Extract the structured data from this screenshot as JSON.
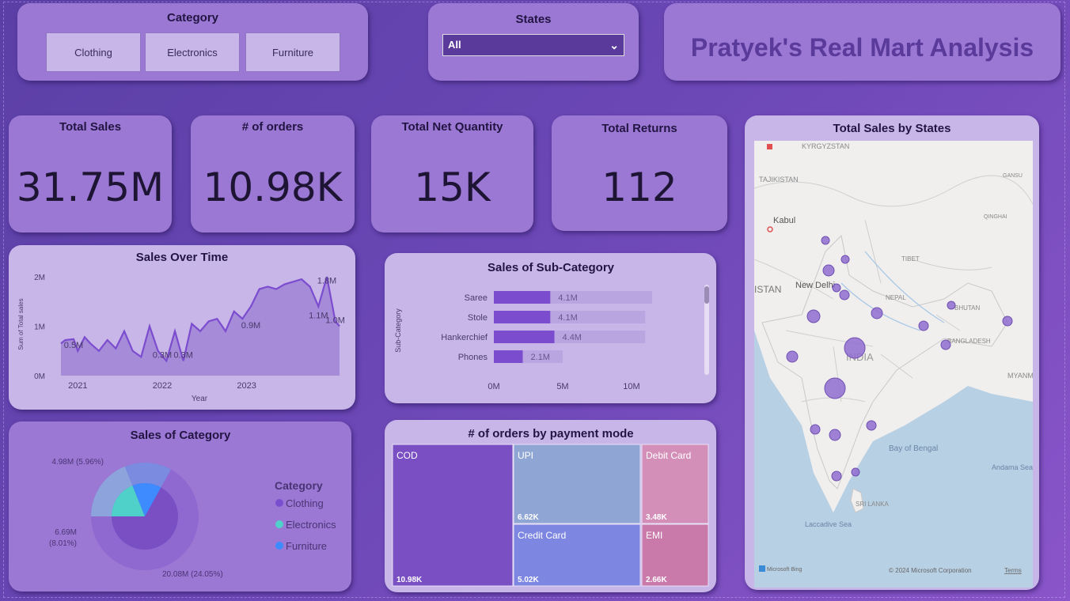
{
  "category_slicer": {
    "title": "Category",
    "options": [
      "Clothing",
      "Electronics",
      "Furniture"
    ]
  },
  "states_slicer": {
    "title": "States",
    "selected": "All"
  },
  "report_title": "Pratyek's Real Mart Analysis",
  "kpis": [
    {
      "label": "Total Sales",
      "value": "31.75M"
    },
    {
      "label": "# of orders",
      "value": "10.98K"
    },
    {
      "label": "Total Net Quantity",
      "value": "15K"
    },
    {
      "label": "Total Returns",
      "value": "112"
    }
  ],
  "colors": {
    "accent": "#7c4ccf",
    "bar_bg": "#b9a5e0",
    "clothing": "#7a4fcf",
    "electronics": "#4fd0c8",
    "furniture": "#3d8bff"
  },
  "chart_data": [
    {
      "type": "area",
      "title": "Sales Over Time",
      "xlabel": "Year",
      "ylabel": "Sum of Total sales",
      "y_ticks": [
        "0M",
        "1M",
        "2M"
      ],
      "x_ticks": [
        "2021",
        "2022",
        "2023"
      ],
      "ylim": [
        0,
        2000000
      ],
      "xlim": [
        2020.8,
        2024.1
      ],
      "x": [
        2020.8,
        2020.85,
        2020.95,
        2021.0,
        2021.08,
        2021.15,
        2021.25,
        2021.35,
        2021.45,
        2021.55,
        2021.65,
        2021.75,
        2021.85,
        2021.95,
        2022.05,
        2022.15,
        2022.25,
        2022.35,
        2022.45,
        2022.55,
        2022.65,
        2022.75,
        2022.85,
        2022.95,
        2023.05,
        2023.15,
        2023.25,
        2023.35,
        2023.45,
        2023.55,
        2023.65,
        2023.75,
        2023.85,
        2023.95,
        2024.05,
        2024.1
      ],
      "values": [
        650000,
        720000,
        740000,
        500000,
        780000,
        650000,
        500000,
        720000,
        550000,
        900000,
        500000,
        380000,
        1000000,
        500000,
        300000,
        900000,
        300000,
        1050000,
        900000,
        1100000,
        1150000,
        900000,
        1300000,
        1150000,
        1400000,
        1750000,
        1800000,
        1750000,
        1850000,
        1900000,
        1950000,
        1800000,
        1400000,
        2000000,
        1100000,
        1000000
      ],
      "data_labels": [
        {
          "text": "0.5M",
          "x": 2020.95,
          "y": 500000
        },
        {
          "text": "0.3M",
          "x": 2022.0,
          "y": 300000
        },
        {
          "text": "0.3M",
          "x": 2022.25,
          "y": 300000
        },
        {
          "text": "0.9M",
          "x": 2023.05,
          "y": 900000
        },
        {
          "text": "1.1M",
          "x": 2023.85,
          "y": 1100000
        },
        {
          "text": "1.8M",
          "x": 2023.95,
          "y": 1800000
        },
        {
          "text": "1.0M",
          "x": 2024.05,
          "y": 1000000
        }
      ]
    },
    {
      "type": "bar",
      "title": "Sales of Sub-Category",
      "ylabel": "Sub-Category",
      "categories": [
        "Saree",
        "Stole",
        "Hankerchief",
        "Phones"
      ],
      "values": [
        4100000,
        4100000,
        4400000,
        2100000
      ],
      "value_labels": [
        "4.1M",
        "4.1M",
        "4.4M",
        "2.1M"
      ],
      "background_values": [
        11500000,
        11000000,
        11000000,
        5000000
      ],
      "x_ticks": [
        "0M",
        "5M",
        "10M"
      ],
      "xlim": [
        0,
        11500000
      ]
    },
    {
      "type": "pie",
      "title": "Sales of Category",
      "legend_title": "Category",
      "legend_position": "right",
      "slices": [
        {
          "name": "Clothing",
          "value": 20080000,
          "label": "20.08M (24.05%)"
        },
        {
          "name": "Electronics",
          "value": 6690000,
          "label": "6.69M\n(8.01%)"
        },
        {
          "name": "Furniture",
          "value": 4980000,
          "label": "4.98M (5.96%)"
        }
      ]
    },
    {
      "type": "treemap",
      "title": "# of orders by payment mode",
      "items": [
        {
          "name": "COD",
          "value": 10980,
          "label": "10.98K",
          "color": "#7a4fc4"
        },
        {
          "name": "UPI",
          "value": 6620,
          "label": "6.62K",
          "color": "#8fa6d4"
        },
        {
          "name": "Credit Card",
          "value": 5020,
          "label": "5.02K",
          "color": "#7d86e0"
        },
        {
          "name": "Debit Card",
          "value": 3480,
          "label": "3.48K",
          "color": "#d48fb9"
        },
        {
          "name": "EMI",
          "value": 2660,
          "label": "2.66K",
          "color": "#c97aaa"
        }
      ]
    }
  ],
  "map": {
    "title": "Total Sales by States",
    "labels": {
      "kyrgyzstan": "KYRGYZSTAN",
      "tajikistan": "TAJIKISTAN",
      "kabul": "Kabul",
      "istan": "ISTAN",
      "new_delhi": "New Delhi",
      "tibet": "TIBET",
      "nepal": "NEPAL",
      "bhutan": "BHUTAN",
      "bangladesh": "BANGLADESH",
      "india": "INDIA",
      "myanmar": "MYANM",
      "bay": "Bay of Bengal",
      "andaman": "Andama Sea",
      "sri_lanka": "SRI LANKA",
      "laccadive": "Laccadive Sea",
      "gansu": "GANSU",
      "qinghai": "QINGHAI"
    },
    "footer_left": "Microsoft Bing",
    "footer_right": "© 2024 Microsoft Corporation",
    "terms": "Terms"
  }
}
